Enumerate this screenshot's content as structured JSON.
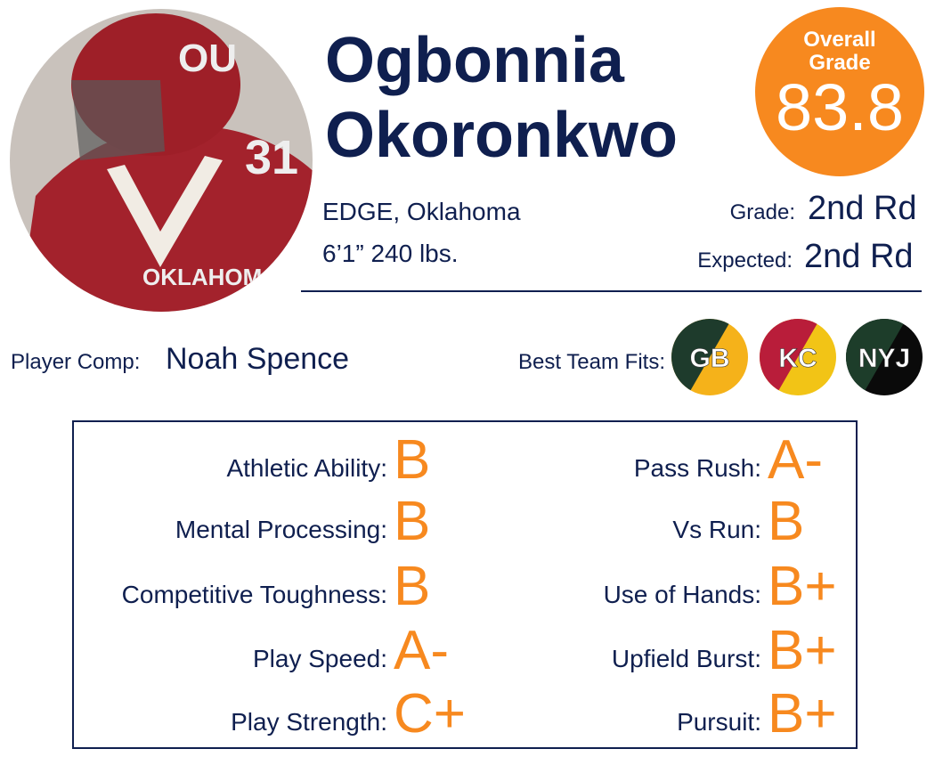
{
  "player": {
    "first_name": "Ogbonnia",
    "last_name": "Okoronkwo",
    "position_school": "EDGE, Oklahoma",
    "size": "6’1” 240 lbs."
  },
  "overall": {
    "label_line1": "Overall",
    "label_line2": "Grade",
    "value": 83.8
  },
  "grade": {
    "label": "Grade:",
    "value": "2nd Rd"
  },
  "expected": {
    "label": "Expected:",
    "value": "2nd Rd"
  },
  "comp": {
    "label": "Player Comp:",
    "value": "Noah Spence"
  },
  "team_fits": {
    "label": "Best Team Fits:",
    "teams": [
      "GB",
      "KC",
      "NYJ"
    ]
  },
  "traits": {
    "left": [
      {
        "label": "Athletic Ability:",
        "grade": "B"
      },
      {
        "label": "Mental Processing:",
        "grade": "B"
      },
      {
        "label": "Competitive Toughness:",
        "grade": "B"
      },
      {
        "label": "Play Speed:",
        "grade": "A-"
      },
      {
        "label": "Play Strength:",
        "grade": "C+"
      }
    ],
    "right": [
      {
        "label": "Pass Rush:",
        "grade": "A-"
      },
      {
        "label": "Vs Run:",
        "grade": "B"
      },
      {
        "label": "Use of Hands:",
        "grade": "B+"
      },
      {
        "label": "Upfield Burst:",
        "grade": "B+"
      },
      {
        "label": "Pursuit:",
        "grade": "B+"
      }
    ]
  }
}
